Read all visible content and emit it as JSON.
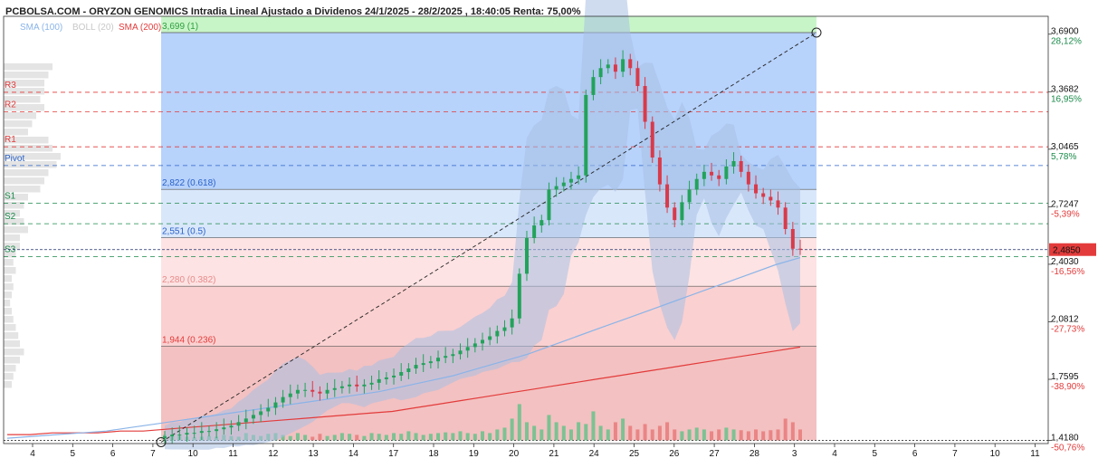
{
  "header": {
    "title": "PCBOLSA.COM - ORYZON GENOMICS Intradia Lineal Ajustado a Dividenos 24/1/2025 - 28/2/2025 , 18:40:05 Renta: 75,00%",
    "legend": [
      {
        "label": "SMA (100)",
        "color": "#8ab4e8"
      },
      {
        "label": "BOLL (20)",
        "color": "#c8c8c8"
      },
      {
        "label": "SMA (200)",
        "color": "#e33b3b"
      }
    ]
  },
  "chart_data": {
    "type": "candlestick",
    "title": "PCBOLSA.COM - ORYZON GENOMICS Intradia Lineal Ajustado a Dividenos 24/1/2025 - 28/2/2025 , 18:40:05 Renta: 75,00%",
    "y_range": [
      1.4,
      3.79
    ],
    "x_tick_labels": [
      "4",
      "5",
      "6",
      "7",
      "10",
      "11",
      "12",
      "13",
      "14",
      "17",
      "18",
      "19",
      "20",
      "21",
      "24",
      "25",
      "26",
      "27",
      "28",
      "3",
      "4",
      "5",
      "6",
      "7",
      "10",
      "11"
    ],
    "y_ticks": [
      {
        "value": 3.69,
        "label": "3,6900",
        "pct": "28,12%",
        "pct_color": "#1a8a4a"
      },
      {
        "value": 3.3682,
        "label": "3,3682",
        "pct": "16,95%",
        "pct_color": "#1a8a4a"
      },
      {
        "value": 3.0465,
        "label": "3,0465",
        "pct": "5,78%",
        "pct_color": "#1a8a4a"
      },
      {
        "value": 2.7247,
        "label": "2,7247",
        "pct": "-5,39%",
        "pct_color": "#e33b3b"
      },
      {
        "value": 2.403,
        "label": "2,4030",
        "pct": "-16,56%",
        "pct_color": "#e33b3b"
      },
      {
        "value": 2.0812,
        "label": "2,0812",
        "pct": "-27,73%",
        "pct_color": "#e33b3b"
      },
      {
        "value": 1.7595,
        "label": "1,7595",
        "pct": "-38,90%",
        "pct_color": "#e33b3b"
      },
      {
        "value": 1.418,
        "label": "1,4180",
        "pct": "-50,76%",
        "pct_color": "#e33b3b"
      }
    ],
    "last_price": {
      "value": 2.485,
      "label": "2,4850",
      "color": "#e33b3b"
    },
    "fibonacci": [
      {
        "label": "3,699 (1)",
        "value": 3.699,
        "color": "#2e9e3e"
      },
      {
        "label": "2,822 (0.618)",
        "value": 2.822,
        "color": "#2a62c9"
      },
      {
        "label": "2,551 (0.5)",
        "value": 2.551,
        "color": "#2a62c9"
      },
      {
        "label": "2,280 (0.382)",
        "value": 2.28,
        "color": "#e88a8a"
      },
      {
        "label": "1,944 (0.236)",
        "value": 1.944,
        "color": "#e33b3b"
      }
    ],
    "pivots": [
      {
        "label": "R3",
        "value": 3.365,
        "color": "#e33b3b"
      },
      {
        "label": "R2",
        "value": 3.255,
        "color": "#e33b3b"
      },
      {
        "label": "R1",
        "value": 3.06,
        "color": "#e33b3b"
      },
      {
        "label": "Pivot",
        "value": 2.955,
        "color": "#2a62c9"
      },
      {
        "label": "S1",
        "value": 2.745,
        "color": "#1a8a4a"
      },
      {
        "label": "S2",
        "value": 2.63,
        "color": "#1a8a4a"
      },
      {
        "label": "S3",
        "value": 2.445,
        "color": "#1a8a4a"
      }
    ],
    "close_prices": [
      1.44,
      1.45,
      1.45,
      1.46,
      1.46,
      1.47,
      1.47,
      1.48,
      1.49,
      1.5,
      1.52,
      1.54,
      1.56,
      1.58,
      1.6,
      1.63,
      1.66,
      1.68,
      1.7,
      1.7,
      1.69,
      1.68,
      1.7,
      1.71,
      1.72,
      1.73,
      1.72,
      1.73,
      1.74,
      1.76,
      1.77,
      1.78,
      1.8,
      1.82,
      1.84,
      1.85,
      1.86,
      1.88,
      1.89,
      1.9,
      1.92,
      1.94,
      1.96,
      1.98,
      2.0,
      2.03,
      2.05,
      2.1,
      2.35,
      2.55,
      2.62,
      2.65,
      2.82,
      2.84,
      2.86,
      2.88,
      2.9,
      3.35,
      3.45,
      3.5,
      3.52,
      3.48,
      3.55,
      3.5,
      3.4,
      3.2,
      3.0,
      2.85,
      2.72,
      2.65,
      2.75,
      2.82,
      2.88,
      2.92,
      2.9,
      2.88,
      2.95,
      2.98,
      2.92,
      2.85,
      2.8,
      2.78,
      2.76,
      2.72,
      2.6,
      2.49,
      2.485
    ],
    "volume": [
      0.15,
      0.1,
      0.12,
      0.1,
      0.08,
      0.1,
      0.12,
      0.1,
      0.15,
      0.12,
      0.1,
      0.2,
      0.15,
      0.12,
      0.18,
      0.2,
      0.15,
      0.12,
      0.2,
      0.15,
      0.1,
      0.18,
      0.12,
      0.15,
      0.2,
      0.18,
      0.15,
      0.12,
      0.2,
      0.18,
      0.15,
      0.2,
      0.18,
      0.25,
      0.2,
      0.15,
      0.18,
      0.2,
      0.22,
      0.2,
      0.25,
      0.2,
      0.18,
      0.25,
      0.2,
      0.3,
      0.35,
      0.6,
      1.0,
      0.5,
      0.4,
      0.3,
      0.7,
      0.5,
      0.4,
      0.3,
      0.5,
      0.45,
      0.8,
      0.4,
      0.3,
      0.5,
      0.6,
      0.4,
      0.3,
      0.45,
      0.3,
      0.4,
      0.5,
      0.3,
      0.25,
      0.3,
      0.35,
      0.3,
      0.25,
      0.3,
      0.35,
      0.3,
      0.28,
      0.25,
      0.3,
      0.25,
      0.28,
      0.3,
      0.6,
      0.5,
      0.3
    ],
    "sma200": [
      1.45,
      1.45,
      1.46,
      1.46,
      1.46,
      1.47,
      1.47,
      1.48,
      1.49,
      1.5,
      1.51,
      1.52,
      1.53,
      1.54,
      1.55,
      1.56,
      1.57,
      1.58,
      1.6,
      1.62,
      1.64,
      1.66,
      1.68,
      1.7,
      1.72,
      1.74,
      1.76,
      1.78,
      1.8,
      1.82,
      1.84,
      1.86,
      1.88,
      1.9,
      1.92,
      1.94
    ],
    "sma100": [
      1.43,
      1.44,
      1.45,
      1.46,
      1.47,
      1.49,
      1.51,
      1.53,
      1.55,
      1.57,
      1.59,
      1.61,
      1.63,
      1.65,
      1.67,
      1.69,
      1.72,
      1.75,
      1.78,
      1.82,
      1.86,
      1.9,
      1.95,
      2.0,
      2.05,
      2.1,
      2.15,
      2.2,
      2.25,
      2.3,
      2.35,
      2.4,
      2.44
    ],
    "xlabel": "",
    "ylabel": ""
  },
  "volume_profile": [
    0.6,
    0.55,
    0.5,
    0.5,
    0.45,
    0.5,
    0.4,
    0.35,
    0.3,
    0.55,
    0.6,
    0.7,
    0.65,
    0.55,
    0.5,
    0.45,
    0.3,
    0.25,
    0.2,
    0.25,
    0.3,
    0.2,
    0.2,
    0.15,
    0.12,
    0.15,
    0.1,
    0.12,
    0.1,
    0.08,
    0.1,
    0.12,
    0.15,
    0.18,
    0.2,
    0.25,
    0.2,
    0.15,
    0.12,
    0.1
  ]
}
